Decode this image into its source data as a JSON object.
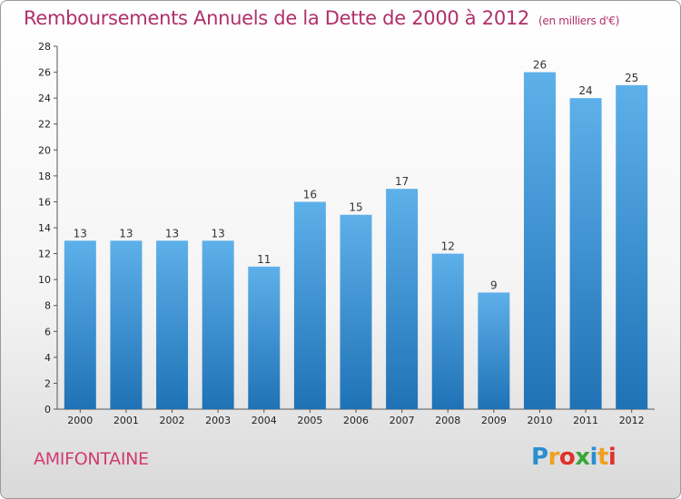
{
  "chart_data": {
    "type": "bar",
    "title": "Remboursements Annuels de la Dette de 2000 à 2012",
    "unit": "(en milliers d'€)",
    "categories": [
      "2000",
      "2001",
      "2002",
      "2003",
      "2004",
      "2005",
      "2006",
      "2007",
      "2008",
      "2009",
      "2010",
      "2011",
      "2012"
    ],
    "values": [
      13,
      13,
      13,
      13,
      11,
      16,
      15,
      17,
      12,
      9,
      26,
      24,
      25
    ],
    "ylim": [
      0,
      28
    ],
    "yticks": [
      0,
      2,
      4,
      6,
      8,
      10,
      12,
      14,
      16,
      18,
      20,
      22,
      24,
      26,
      28
    ],
    "grid": false,
    "xlabel": "",
    "ylabel": ""
  },
  "commune": "AMIFONTAINE",
  "logo": {
    "text": "Proxiti",
    "letters": [
      "P",
      "r",
      "o",
      "x",
      "i",
      "t",
      "i"
    ],
    "colors": [
      "#2b8fcf",
      "#f0a020",
      "#e0312b",
      "#3aa63a",
      "#2b8fcf",
      "#f0a020",
      "#e0312b"
    ]
  },
  "colors": {
    "bar_light": "#5eb0ea",
    "bar_dark": "#1f72b5",
    "title": "#b0306b"
  }
}
